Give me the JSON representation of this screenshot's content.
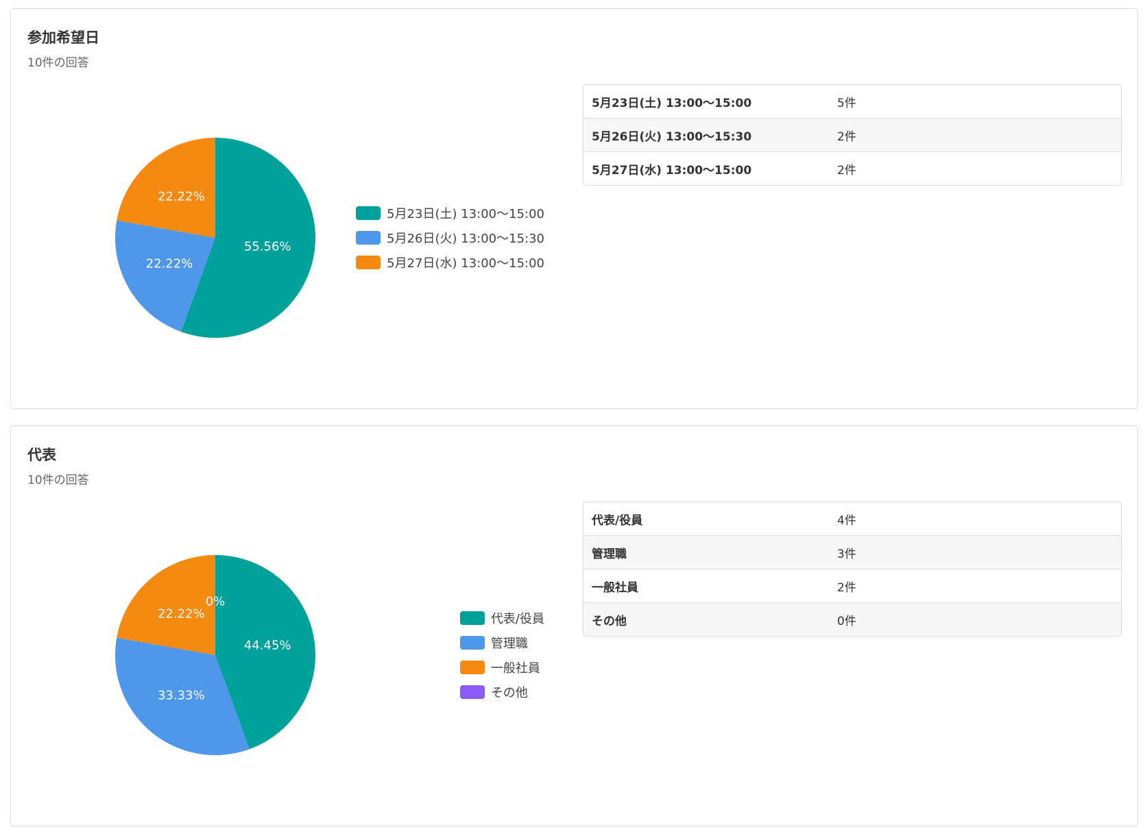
{
  "cards": [
    {
      "title": "参加希望日",
      "subtitle": "10件の回答",
      "chart_data": {
        "type": "pie",
        "categories": [
          "5月23日(土) 13:00〜15:00",
          "5月26日(火) 13:00〜15:30",
          "5月27日(水) 13:00〜15:00"
        ],
        "values": [
          55.56,
          22.22,
          22.22
        ],
        "value_labels": [
          "55.56%",
          "22.22%",
          "22.22%"
        ],
        "colors": [
          "#00a19a",
          "#4f97e8",
          "#f58a12"
        ]
      },
      "table": {
        "rows": [
          [
            "5月23日(土) 13:00〜15:00",
            "5件"
          ],
          [
            "5月26日(火) 13:00〜15:30",
            "2件"
          ],
          [
            "5月27日(水) 13:00〜15:00",
            "2件"
          ]
        ]
      }
    },
    {
      "title": "代表",
      "subtitle": "10件の回答",
      "chart_data": {
        "type": "pie",
        "categories": [
          "代表/役員",
          "管理職",
          "一般社員",
          "その他"
        ],
        "values": [
          44.45,
          33.33,
          22.22,
          0
        ],
        "value_labels": [
          "44.45%",
          "33.33%",
          "22.22%",
          "0%"
        ],
        "colors": [
          "#00a19a",
          "#4f97e8",
          "#f58a12",
          "#8a5cf5"
        ]
      },
      "table": {
        "rows": [
          [
            "代表/役員",
            "4件"
          ],
          [
            "管理職",
            "3件"
          ],
          [
            "一般社員",
            "2件"
          ],
          [
            "その他",
            "0件"
          ]
        ]
      }
    }
  ]
}
